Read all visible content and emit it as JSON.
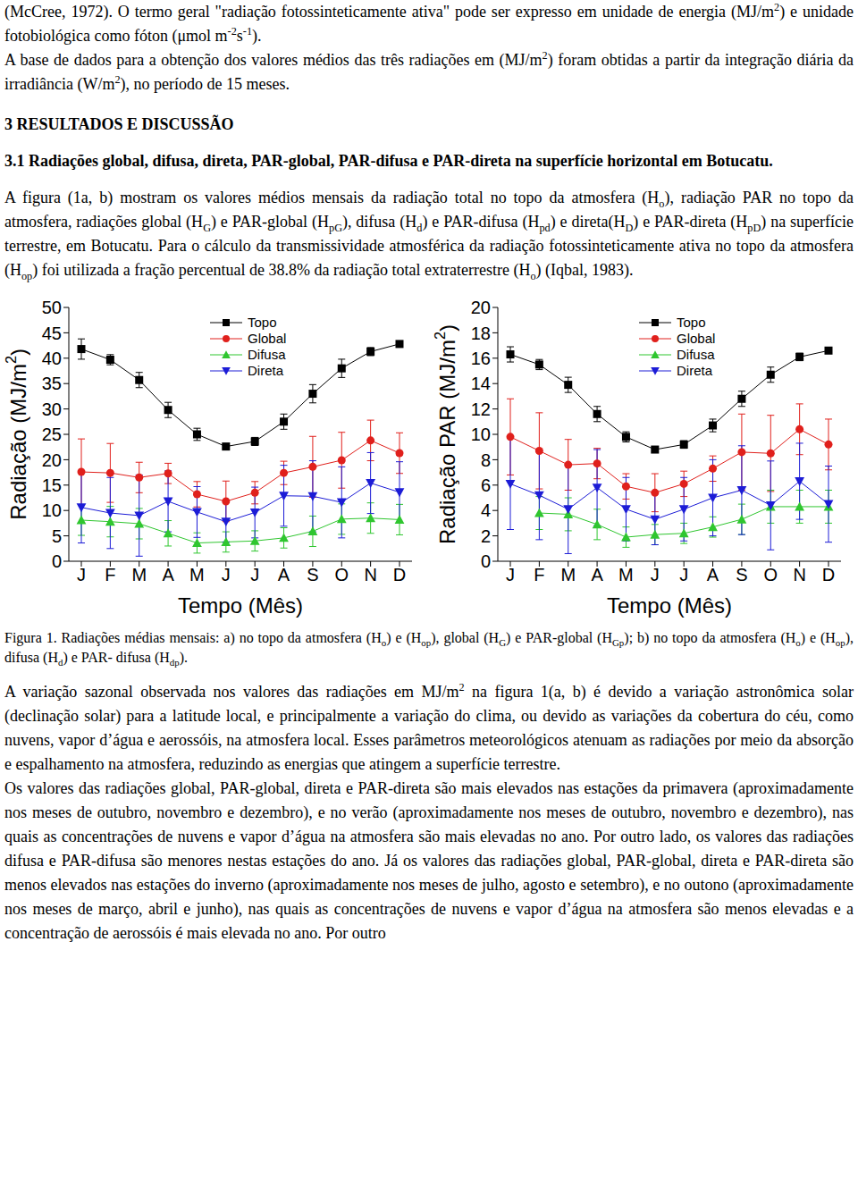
{
  "paragraphs_top": [
    [
      "(McCree, 1972). O termo geral \"radiação fotossinteticamente ativa\" pode ser expresso em unidade de energia (MJ/m",
      {
        "sup": "2"
      },
      ") e unidade fotobiológica como fóton (μmol m",
      {
        "sup": "-2"
      },
      "s",
      {
        "sup": "-1"
      },
      ")."
    ],
    [
      "A base de dados para a obtenção dos valores médios das três radiações em (MJ/m",
      {
        "sup": "2"
      },
      ") foram obtidas a partir da integração diária da irradiância (W/m",
      {
        "sup": "2"
      },
      "), no período de 15 meses."
    ]
  ],
  "section": "3 RESULTADOS E DISCUSSÃO",
  "subsection": "3.1 Radiações global, difusa, direta, PAR-global, PAR-difusa e PAR-direta na superfície horizontal em Botucatu.",
  "paragraph_figure": [
    "A figura (1a, b) mostram os valores médios mensais da radiação total no topo da atmosfera (H",
    {
      "sub": "o"
    },
    "), radiação PAR no topo da atmosfera, radiações global (H",
    {
      "sub": "G"
    },
    ") e PAR-global (H",
    {
      "sub": "pG"
    },
    "), difusa (H",
    {
      "sub": "d"
    },
    ") e PAR-difusa (H",
    {
      "sub": "pd"
    },
    ") e direta(H",
    {
      "sub": "D"
    },
    ") e PAR-direta (H",
    {
      "sub": "pD"
    },
    ") na superfície terrestre, em Botucatu. Para o cálculo da transmissividade atmosférica da radiação fotossinteticamente ativa no topo da atmosfera (H",
    {
      "sub": "op"
    },
    ") foi utilizada a fração percentual de 38.8% da radiação total extraterrestre (H",
    {
      "sub": "o"
    },
    ") (Iqbal, 1983)."
  ],
  "chart_data": [
    {
      "type": "line",
      "categories": [
        "J",
        "F",
        "M",
        "A",
        "M",
        "J",
        "J",
        "A",
        "S",
        "O",
        "N",
        "D"
      ],
      "x_label": "Tempo (Mês)",
      "y_label": [
        "Radiação (MJ/m",
        {
          "sup": "2"
        },
        ")"
      ],
      "ylim": [
        0,
        50
      ],
      "yticks": [
        0,
        5,
        10,
        15,
        20,
        25,
        30,
        35,
        40,
        45,
        50
      ],
      "legend": "upper center",
      "series": [
        {
          "name": "Topo",
          "color": "#000000",
          "marker": "square",
          "values": [
            41.8,
            39.7,
            35.7,
            29.8,
            25,
            22.6,
            23.6,
            27.5,
            33,
            38,
            41.3,
            42.8
          ],
          "errors": [
            2,
            1,
            1.5,
            1.5,
            1.2,
            0.3,
            0.8,
            1.5,
            1.8,
            1.8,
            0.8,
            0.3
          ]
        },
        {
          "name": "Global",
          "color": "#e0201c",
          "marker": "circle",
          "values": [
            17.6,
            17.4,
            16.5,
            17.3,
            13.2,
            11.8,
            13.5,
            17.4,
            18.6,
            19.9,
            23.8,
            21.3
          ],
          "errors": [
            6.5,
            5.8,
            3,
            2,
            2.5,
            4,
            2.2,
            2.3,
            6,
            5.5,
            4,
            4
          ]
        },
        {
          "name": "Difusa",
          "color": "#2fc62f",
          "marker": "triangle-up",
          "values": [
            8.1,
            7.8,
            7.4,
            5.5,
            3.6,
            3.8,
            4,
            4.6,
            5.9,
            8.3,
            8.5,
            8.2
          ],
          "errors": [
            3,
            3,
            3,
            2.5,
            2,
            2,
            2,
            2,
            3,
            3,
            3,
            3
          ]
        },
        {
          "name": "Direta",
          "color": "#1c1cd6",
          "marker": "triangle-down",
          "values": [
            10.6,
            9.5,
            9,
            11.8,
            9.7,
            7.8,
            9.6,
            12.9,
            12.8,
            11.6,
            15.4,
            13.6
          ],
          "errors": [
            7,
            7,
            8,
            6,
            5,
            4,
            5,
            6,
            7,
            7,
            6,
            6
          ]
        }
      ]
    },
    {
      "type": "line",
      "categories": [
        "J",
        "F",
        "M",
        "A",
        "M",
        "J",
        "J",
        "A",
        "S",
        "O",
        "N",
        "D"
      ],
      "x_label": "Tempo (Mês)",
      "y_label": [
        "Radiação PAR (MJ/m",
        {
          "sup": "2"
        },
        ")"
      ],
      "ylim": [
        0,
        20
      ],
      "yticks": [
        0,
        2,
        4,
        6,
        8,
        10,
        12,
        14,
        16,
        18,
        20
      ],
      "legend": "upper center",
      "series": [
        {
          "name": "Topo",
          "color": "#000000",
          "marker": "square",
          "values": [
            16.3,
            15.5,
            13.9,
            11.6,
            9.8,
            8.8,
            9.2,
            10.7,
            12.8,
            14.7,
            16.1,
            16.6
          ],
          "errors": [
            0.6,
            0.4,
            0.6,
            0.6,
            0.4,
            0.2,
            0.3,
            0.5,
            0.6,
            0.6,
            0.3,
            0.2
          ]
        },
        {
          "name": "Global",
          "color": "#e0201c",
          "marker": "circle",
          "values": [
            9.8,
            8.7,
            7.6,
            7.7,
            5.9,
            5.4,
            6.1,
            7.3,
            8.6,
            8.5,
            10.4,
            9.2
          ],
          "errors": [
            3,
            3,
            2,
            1.2,
            1,
            1.5,
            1,
            1,
            3,
            3,
            2,
            2
          ]
        },
        {
          "name": "Difusa",
          "color": "#2fc62f",
          "marker": "triangle-up",
          "values": [
            null,
            3.8,
            3.7,
            2.9,
            1.9,
            2.1,
            2.2,
            2.7,
            3.3,
            4.3,
            4.3,
            4.3
          ],
          "errors": [
            null,
            1.3,
            1.3,
            1.2,
            0.8,
            0.8,
            0.8,
            0.8,
            1.2,
            1.3,
            1.3,
            1.3
          ]
        },
        {
          "name": "Direta",
          "color": "#1c1cd6",
          "marker": "triangle-down",
          "values": [
            6.1,
            5.2,
            4.1,
            5.8,
            4.1,
            3.3,
            4.1,
            5,
            5.6,
            4.4,
            6.3,
            4.5
          ],
          "errors": [
            3.6,
            3.5,
            3.5,
            3,
            2.5,
            2,
            2.5,
            3,
            3.5,
            3.5,
            3,
            3
          ]
        }
      ]
    }
  ],
  "caption": [
    "Figura 1. Radiações médias mensais: a) no topo da atmosfera (H",
    {
      "sub": "o"
    },
    ") e (H",
    {
      "sub": "op"
    },
    "), global (H",
    {
      "sub": "G"
    },
    ") e PAR-global (H",
    {
      "sub": "Gp"
    },
    "); b) no topo da atmosfera (H",
    {
      "sub": "o"
    },
    ") e (H",
    {
      "sub": "op"
    },
    "), difusa (H",
    {
      "sub": "d"
    },
    ") e PAR- difusa (H",
    {
      "sub": "dp"
    },
    ")."
  ],
  "paragraphs_bottom": [
    [
      "A variação sazonal observada nos valores das radiações em MJ/m",
      {
        "sup": "2"
      },
      " na figura 1(a, b) é devido a variação astronômica solar (declinação solar) para a latitude local, e principalmente a variação do clima, ou devido as variações da cobertura do céu, como nuvens, vapor d’água e aerossóis, na atmosfera local. Esses parâmetros meteorológicos atenuam as radiações por meio da absorção e espalhamento na atmosfera, reduzindo as energias que atingem a superfície terrestre."
    ],
    [
      "Os valores das radiações global, PAR-global, direta e PAR-direta são mais elevados nas estações da primavera (aproximadamente nos meses de outubro, novembro e dezembro), e no verão (aproximadamente nos meses de outubro, novembro e dezembro), nas quais as concentrações de nuvens e vapor d’água na atmosfera são mais elevadas no ano. Por outro lado, os valores das radiações difusa e PAR-difusa são menores nestas estações do ano. Já os valores das radiações global, PAR-global, direta e PAR-direta são menos elevados nas estações do inverno (aproximadamente nos meses de julho, agosto e setembro), e no outono (aproximadamente nos meses de março, abril e junho), nas quais as concentrações de nuvens e vapor d’água na atmosfera são menos elevadas e a concentração de aerossóis é mais elevada no ano. Por outro"
    ]
  ]
}
